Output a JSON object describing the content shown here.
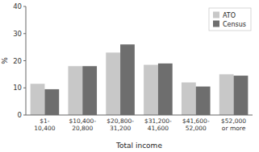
{
  "chart_data": {
    "type": "bar",
    "categories": [
      "$1-\n10,400",
      "$10,400-\n20,800",
      "$20,800-\n31,200",
      "$31,200-\n41,600",
      "$41,600-\n52,000",
      "$52,000\nor more"
    ],
    "series": [
      {
        "name": "ATO",
        "color": "#c8c8c8",
        "values": [
          11.5,
          18.0,
          23.0,
          18.5,
          12.0,
          15.0
        ]
      },
      {
        "name": "Census",
        "color": "#6e6e6e",
        "values": [
          9.5,
          18.0,
          26.0,
          19.0,
          10.5,
          14.5
        ]
      }
    ],
    "xlabel": "Total income",
    "ylabel": "%",
    "ylim": [
      0,
      40
    ],
    "yticks": [
      0,
      10,
      20,
      30,
      40
    ],
    "grid": false,
    "legend": "upper right"
  }
}
